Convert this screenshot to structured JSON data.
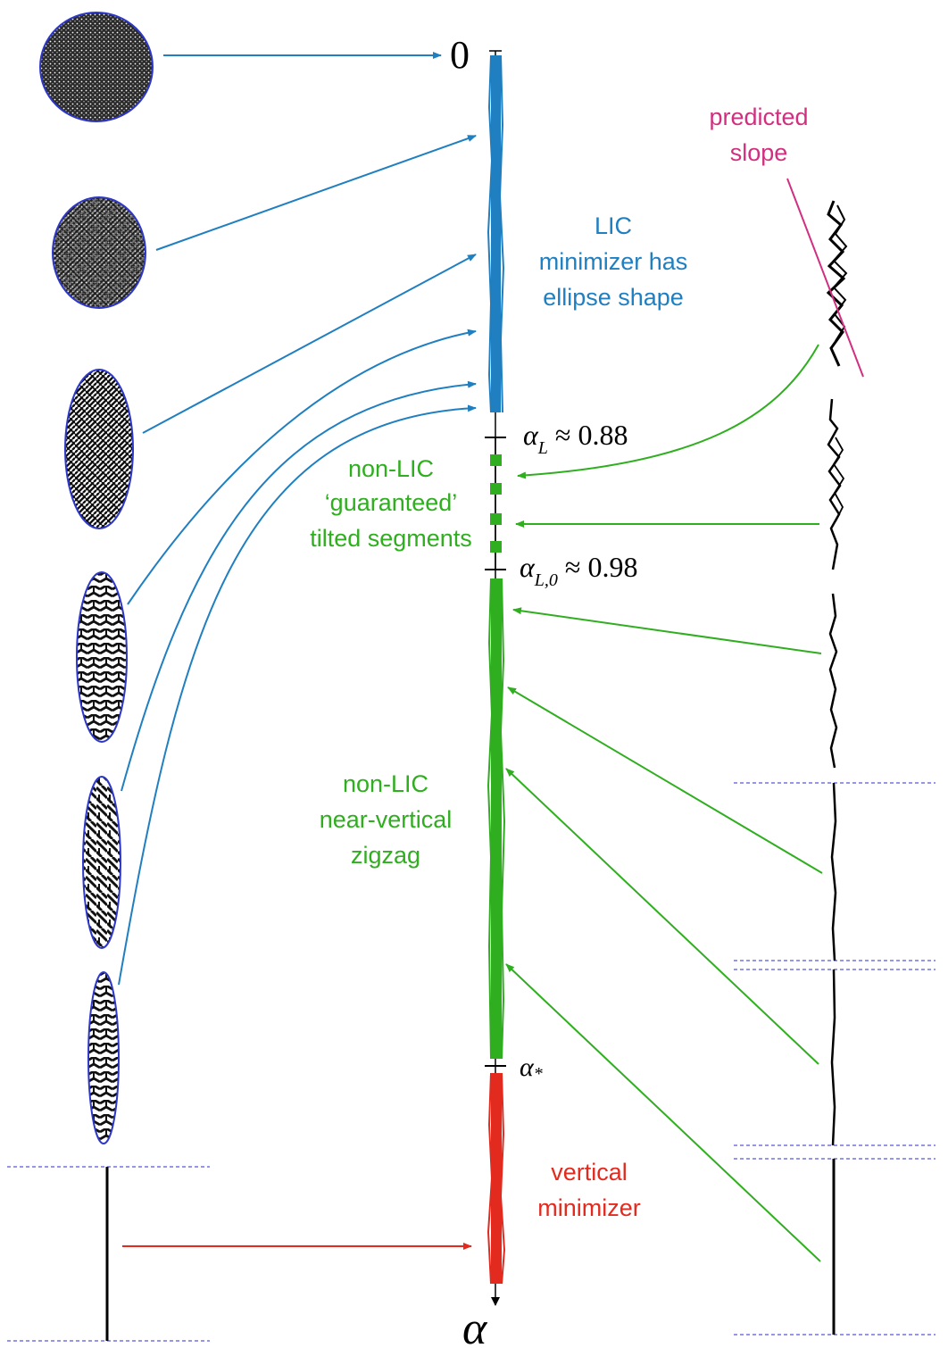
{
  "colors": {
    "lic": "#1f7fc0",
    "non_lic": "#2fae1f",
    "vertical": "#e32a1f",
    "predicted": "#d12f7f",
    "dashed": "#2b2bd6",
    "ellipse_border": "#2d37c8",
    "axis": "#000000"
  },
  "axis": {
    "zero_label": "0",
    "alpha_label": "α"
  },
  "ticks": {
    "alpha_L": {
      "symbol": "α",
      "sub": "L",
      "rest": " ≈ 0.88"
    },
    "alpha_L0": {
      "symbol": "α",
      "sub": "L,0",
      "rest": " ≈ 0.98"
    },
    "alpha_star": {
      "symbol": "α",
      "sub": "*",
      "rest": ""
    }
  },
  "labels": {
    "lic": [
      "LIC",
      "minimizer has",
      "ellipse shape"
    ],
    "guaranteed": [
      "non-LIC",
      "‘guaranteed’",
      "tilted segments"
    ],
    "zigzag": [
      "non-LIC",
      "near-vertical",
      "zigzag"
    ],
    "vertical": [
      "vertical",
      "minimizer"
    ],
    "predicted": [
      "predicted",
      "slope"
    ]
  },
  "icons": {
    "left_shapes": [
      "disk-pattern-icon",
      "ellipse-pattern-icon",
      "ellipse-pattern-icon",
      "ellipse-pattern-icon",
      "ellipse-pattern-icon",
      "ellipse-pattern-icon",
      "vertical-line-icon"
    ],
    "right_shapes": [
      "tilted-zigzag-icon",
      "tilted-segments-icon",
      "zigzag-icon",
      "near-vertical-zigzag-icon",
      "vertical-line-icon"
    ]
  }
}
